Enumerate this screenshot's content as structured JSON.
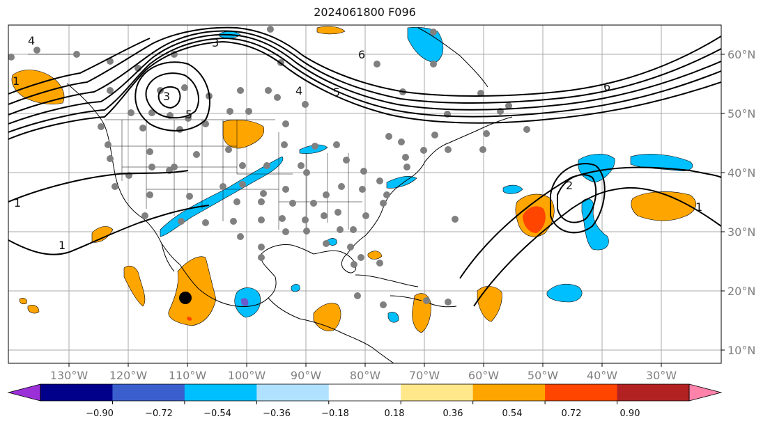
{
  "title": "2024061800 F096",
  "map": {
    "lon_labels": [
      "130°W",
      "120°W",
      "110°W",
      "100°W",
      "90°W",
      "80°W",
      "70°W",
      "60°W",
      "50°W",
      "40°W",
      "30°W"
    ],
    "lat_labels": [
      "60°N",
      "50°N",
      "40°N",
      "30°N",
      "20°N",
      "10°N"
    ],
    "contour_labels": [
      "4",
      "3",
      "1",
      "1",
      "6",
      "4",
      "5",
      "6",
      "3",
      "5",
      "2",
      "1",
      "1"
    ]
  },
  "colorbar": {
    "tick_labels": [
      "−0.90",
      "−0.72",
      "−0.54",
      "−0.36",
      "−0.18",
      "0.18",
      "0.36",
      "0.54",
      "0.72",
      "0.90"
    ],
    "colors": [
      "#9b30d9",
      "#00008b",
      "#3a5fcd",
      "#00bfff",
      "#b0e2ff",
      "#ffffff",
      "#ffe78a",
      "#ffa500",
      "#ff4500",
      "#b22222",
      "#ff82ab"
    ]
  },
  "colors": {
    "positive": "#ffa500",
    "strong_positive": "#ff4500",
    "negative": "#00bfff",
    "very_negative": "#6a5acd",
    "station": "#808080",
    "marker": "#000000"
  }
}
